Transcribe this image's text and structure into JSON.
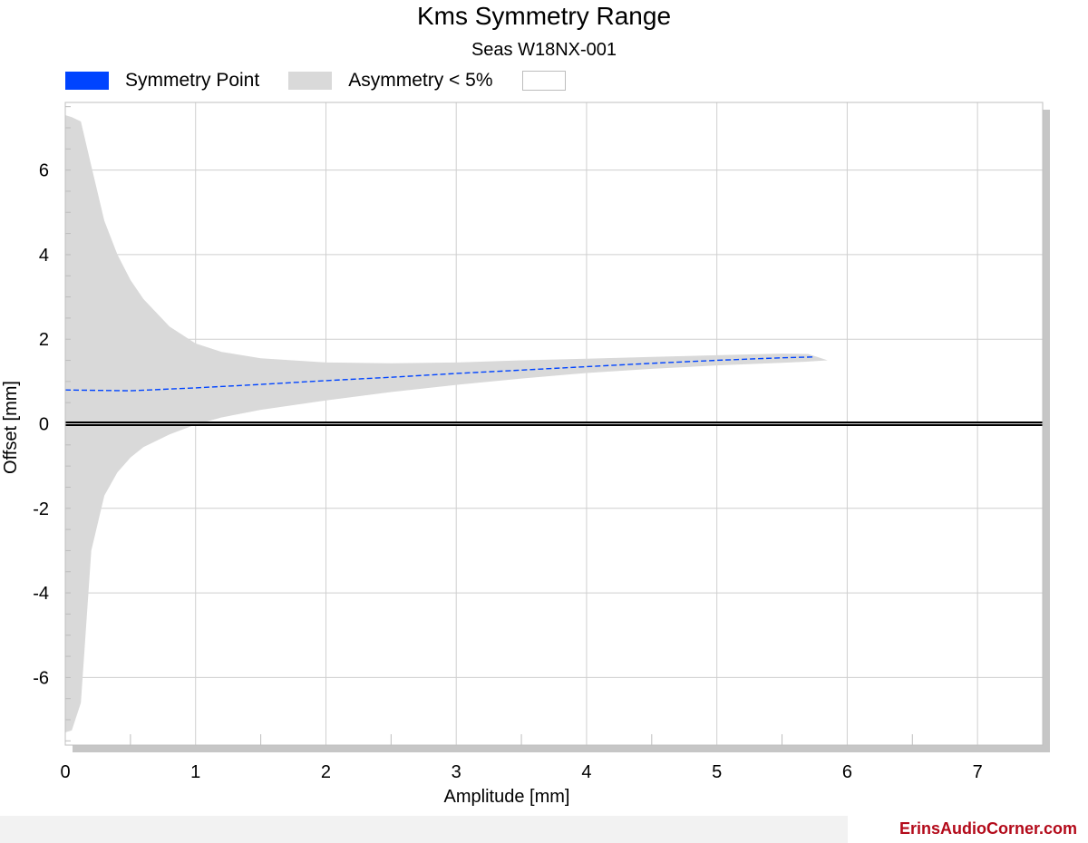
{
  "chart_data": {
    "type": "area",
    "title": "Kms Symmetry Range",
    "subtitle": "Seas W18NX-001",
    "xlabel": "Amplitude [mm]",
    "ylabel": "Offset [mm]",
    "xlim": [
      0,
      7.5
    ],
    "ylim": [
      -7.6,
      7.6
    ],
    "x_ticks": [
      0,
      1,
      2,
      3,
      4,
      5,
      6,
      7
    ],
    "y_ticks": [
      -6,
      -4,
      -2,
      0,
      2,
      4,
      6
    ],
    "grid": true,
    "legend_position": "top-left",
    "legend": [
      {
        "label": "Symmetry Point",
        "color": "#0044ff"
      },
      {
        "label": "Asymmetry < 5%",
        "color": "#d9d9d9"
      },
      {
        "label": "",
        "color": "#ffffff"
      }
    ],
    "series": [
      {
        "name": "Symmetry Point",
        "kind": "line",
        "color": "#0044ff",
        "x": [
          0,
          0.5,
          1,
          1.5,
          2,
          2.5,
          3,
          3.5,
          4,
          4.5,
          5,
          5.5,
          5.75
        ],
        "y": [
          0.8,
          0.78,
          0.85,
          0.93,
          1.02,
          1.1,
          1.19,
          1.27,
          1.35,
          1.43,
          1.5,
          1.56,
          1.58
        ]
      },
      {
        "name": "Asymmetry < 5%",
        "kind": "band",
        "color": "#d9d9d9",
        "x": [
          0,
          0.05,
          0.12,
          0.2,
          0.3,
          0.4,
          0.5,
          0.6,
          0.8,
          1,
          1.2,
          1.5,
          2,
          2.5,
          3,
          3.5,
          4,
          4.5,
          5,
          5.5,
          5.7,
          5.85
        ],
        "upper": [
          7.3,
          7.25,
          7.15,
          6.1,
          4.8,
          4.0,
          3.4,
          2.95,
          2.3,
          1.9,
          1.7,
          1.55,
          1.45,
          1.43,
          1.45,
          1.5,
          1.54,
          1.58,
          1.62,
          1.66,
          1.65,
          1.5
        ],
        "lower": [
          -7.3,
          -7.25,
          -6.6,
          -3.0,
          -1.7,
          -1.15,
          -0.8,
          -0.55,
          -0.25,
          -0.02,
          0.15,
          0.33,
          0.55,
          0.75,
          0.92,
          1.07,
          1.2,
          1.3,
          1.38,
          1.44,
          1.47,
          1.5
        ]
      },
      {
        "name": "",
        "kind": "line",
        "color": "#000000",
        "x": [
          0,
          7.5
        ],
        "y": [
          0,
          0
        ]
      }
    ]
  },
  "footer": {
    "brand": "ErinsAudioCorner.com"
  }
}
